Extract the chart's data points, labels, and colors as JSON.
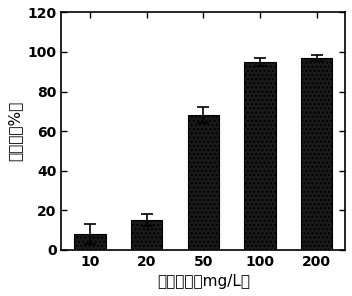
{
  "categories": [
    "10",
    "20",
    "50",
    "100",
    "200"
  ],
  "values": [
    8,
    15,
    68,
    95,
    97
  ],
  "errors": [
    5,
    3,
    4,
    2,
    1.5
  ],
  "bar_color": "#1a1a1a",
  "bar_hatch": "....",
  "xlabel": "碳管浓度（mg/L）",
  "ylabel": "去除率（%）",
  "ylim": [
    0,
    120
  ],
  "yticks": [
    0,
    20,
    40,
    60,
    80,
    100,
    120
  ],
  "background_color": "#ffffff",
  "plot_bg_color": "#ffffff",
  "bar_width": 0.55,
  "axis_fontsize": 11,
  "tick_fontsize": 10,
  "edge_color": "#000000"
}
